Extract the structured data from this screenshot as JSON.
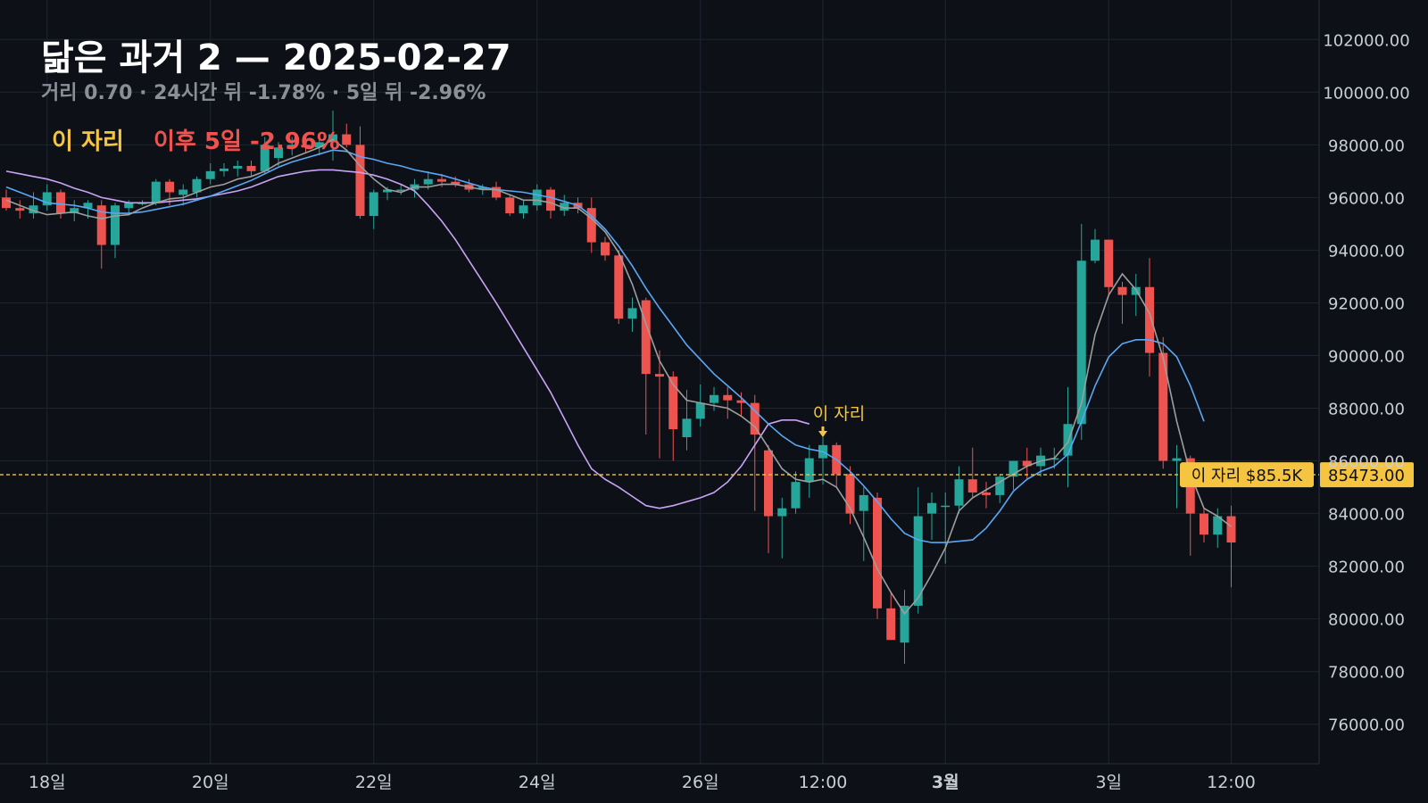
{
  "header": {
    "title": "닮은 과거 2 — 2025-02-27",
    "subtitle": "거리 0.70 · 24시간 뒤 -1.78% · 5일 뒤 -2.96%",
    "marker_label": "이 자리",
    "result_label": "이후 5일 -2.96%"
  },
  "colors": {
    "background": "#0d1117",
    "grid": "#1f2530",
    "up": "#26a69a",
    "down": "#ef5350",
    "ma_short": "#9e9e9e",
    "ma_mid": "#5aa7f5",
    "ma_long": "#c9a3f5",
    "marker": "#f5c542"
  },
  "chart_data": {
    "type": "candlestick",
    "ylim": [
      74500,
      103500
    ],
    "y_ticks": [
      76000,
      78000,
      80000,
      82000,
      84000,
      86000,
      88000,
      90000,
      92000,
      94000,
      96000,
      98000,
      100000,
      102000
    ],
    "y_tick_labels": [
      "76000.00",
      "78000.00",
      "80000.00",
      "82000.00",
      "84000.00",
      "86000.00",
      "88000.00",
      "90000.00",
      "92000.00",
      "94000.00",
      "96000.00",
      "98000.00",
      "100000.00",
      "102000.00"
    ],
    "x_ticks": [
      {
        "i": 3,
        "label": "18일",
        "bold": false
      },
      {
        "i": 15,
        "label": "20일",
        "bold": false
      },
      {
        "i": 27,
        "label": "22일",
        "bold": false
      },
      {
        "i": 39,
        "label": "24일",
        "bold": false
      },
      {
        "i": 51,
        "label": "26일",
        "bold": false
      },
      {
        "i": 60,
        "label": "12:00",
        "bold": false
      },
      {
        "i": 69,
        "label": "3월",
        "bold": true
      },
      {
        "i": 81,
        "label": "3일",
        "bold": false
      },
      {
        "i": 90,
        "label": "12:00",
        "bold": false
      }
    ],
    "candles": [
      [
        96000,
        96300,
        95500,
        95600
      ],
      [
        95600,
        95900,
        95200,
        95500
      ],
      [
        95400,
        96200,
        95200,
        95700
      ],
      [
        95700,
        96500,
        95500,
        96200
      ],
      [
        96200,
        96300,
        95200,
        95400
      ],
      [
        95400,
        95900,
        95100,
        95600
      ],
      [
        95600,
        95900,
        95200,
        95800
      ],
      [
        95700,
        95900,
        93300,
        94200
      ],
      [
        94200,
        95800,
        93700,
        95700
      ],
      [
        95600,
        95900,
        95400,
        95800
      ],
      [
        95800,
        95900,
        95700,
        95800
      ],
      [
        95800,
        96700,
        95700,
        96600
      ],
      [
        96600,
        96700,
        95700,
        96200
      ],
      [
        96100,
        96500,
        95700,
        96300
      ],
      [
        96200,
        96800,
        96000,
        96700
      ],
      [
        96700,
        97300,
        96500,
        97000
      ],
      [
        97000,
        97300,
        96800,
        97100
      ],
      [
        97100,
        97400,
        96800,
        97200
      ],
      [
        97200,
        97400,
        96800,
        97000
      ],
      [
        97000,
        98300,
        96900,
        98000
      ],
      [
        97500,
        98100,
        97200,
        97900
      ],
      [
        97900,
        98300,
        97600,
        98000
      ],
      [
        98000,
        98400,
        97700,
        97900
      ],
      [
        97900,
        98300,
        97600,
        98100
      ],
      [
        98100,
        99300,
        97400,
        98400
      ],
      [
        98400,
        98800,
        97900,
        98000
      ],
      [
        98000,
        98700,
        95200,
        95300
      ],
      [
        95300,
        96300,
        94800,
        96200
      ],
      [
        96200,
        96400,
        95900,
        96300
      ],
      [
        96300,
        96500,
        96100,
        96300
      ],
      [
        96300,
        96700,
        96000,
        96500
      ],
      [
        96500,
        97000,
        96300,
        96700
      ],
      [
        96700,
        96900,
        96400,
        96600
      ],
      [
        96600,
        96800,
        96400,
        96500
      ],
      [
        96500,
        96700,
        96200,
        96300
      ],
      [
        96300,
        96500,
        96100,
        96400
      ],
      [
        96400,
        96600,
        95900,
        96000
      ],
      [
        96000,
        96100,
        95300,
        95400
      ],
      [
        95400,
        95900,
        95200,
        95700
      ],
      [
        95700,
        96500,
        95500,
        96300
      ],
      [
        96300,
        96400,
        95200,
        95500
      ],
      [
        95500,
        96100,
        95300,
        95800
      ],
      [
        95800,
        96000,
        95400,
        95600
      ],
      [
        95600,
        96000,
        93900,
        94300
      ],
      [
        94300,
        94500,
        93600,
        93800
      ],
      [
        93800,
        94000,
        91200,
        91400
      ],
      [
        91400,
        92200,
        90900,
        91800
      ],
      [
        92100,
        92200,
        87000,
        89300
      ],
      [
        89300,
        90200,
        86100,
        89200
      ],
      [
        89200,
        89400,
        86000,
        87200
      ],
      [
        86900,
        88700,
        86400,
        87600
      ],
      [
        87600,
        88900,
        87300,
        88200
      ],
      [
        88200,
        88800,
        87900,
        88500
      ],
      [
        88500,
        88800,
        87600,
        88300
      ],
      [
        88300,
        88600,
        87700,
        88200
      ],
      [
        88200,
        88500,
        84100,
        87000
      ],
      [
        86400,
        86600,
        82500,
        83900
      ],
      [
        83900,
        84600,
        82300,
        84200
      ],
      [
        84200,
        85600,
        84000,
        85200
      ],
      [
        85200,
        86600,
        84600,
        86100
      ],
      [
        86100,
        86900,
        85100,
        86600
      ],
      [
        86600,
        86700,
        85000,
        85500
      ],
      [
        85500,
        85800,
        83600,
        84000
      ],
      [
        84100,
        85000,
        82200,
        84700
      ],
      [
        84600,
        84800,
        80000,
        80400
      ],
      [
        80400,
        81000,
        79200,
        79200
      ],
      [
        79100,
        81100,
        78300,
        80500
      ],
      [
        80500,
        85000,
        80200,
        83900
      ],
      [
        84000,
        84800,
        83000,
        84400
      ],
      [
        84300,
        84800,
        82100,
        84300
      ],
      [
        84300,
        85800,
        84000,
        85300
      ],
      [
        85300,
        86500,
        84600,
        84800
      ],
      [
        84800,
        85200,
        84200,
        84700
      ],
      [
        84700,
        85500,
        84400,
        85400
      ],
      [
        85400,
        86000,
        84900,
        86000
      ],
      [
        86000,
        86500,
        85300,
        85800
      ],
      [
        85800,
        86500,
        85400,
        86200
      ],
      [
        86100,
        86500,
        85700,
        86100
      ],
      [
        86200,
        88800,
        85000,
        87400
      ],
      [
        87400,
        95000,
        86800,
        93600
      ],
      [
        93600,
        94800,
        93500,
        94400
      ],
      [
        94400,
        94400,
        92300,
        92600
      ],
      [
        92600,
        92800,
        91200,
        92300
      ],
      [
        92300,
        93100,
        91500,
        92600
      ],
      [
        92600,
        93700,
        89200,
        90100
      ],
      [
        90100,
        90700,
        85700,
        86000
      ],
      [
        86000,
        86600,
        84200,
        86100
      ],
      [
        86100,
        86200,
        82400,
        84000
      ],
      [
        84000,
        84200,
        82900,
        83200
      ],
      [
        83200,
        84200,
        82700,
        83900
      ],
      [
        83900,
        84300,
        81200,
        82900
      ]
    ],
    "ma_short": [
      95900,
      95700,
      95500,
      95350,
      95400,
      95450,
      95300,
      95200,
      95300,
      95350,
      95600,
      95800,
      95950,
      96000,
      96200,
      96400,
      96500,
      96700,
      96800,
      97000,
      97300,
      97500,
      97700,
      97900,
      98200,
      97800,
      97200,
      96700,
      96300,
      96200,
      96400,
      96400,
      96500,
      96500,
      96400,
      96300,
      96300,
      96100,
      95900,
      95900,
      95800,
      95600,
      95600,
      95200,
      94700,
      93900,
      92700,
      91200,
      89800,
      88900,
      88300,
      88200,
      88100,
      88000,
      87700,
      87300,
      86500,
      85700,
      85300,
      85200,
      85300,
      85000,
      84200,
      83100,
      81900,
      81000,
      80200,
      80800,
      81700,
      82700,
      84100,
      84600,
      84900,
      85200,
      85500,
      85800,
      86000,
      86100,
      86700,
      88200,
      90800,
      92300,
      93100,
      92500,
      91600,
      89900,
      87500,
      85500,
      84200,
      83900,
      83500
    ],
    "ma_mid": [
      96400,
      96200,
      96000,
      95800,
      95750,
      95700,
      95600,
      95450,
      95400,
      95400,
      95450,
      95550,
      95650,
      95750,
      95900,
      96050,
      96250,
      96450,
      96650,
      96900,
      97150,
      97350,
      97500,
      97650,
      97800,
      97750,
      97550,
      97450,
      97300,
      97200,
      97050,
      96950,
      96850,
      96700,
      96550,
      96400,
      96300,
      96250,
      96200,
      96100,
      96000,
      95850,
      95700,
      95300,
      94800,
      94150,
      93400,
      92550,
      91800,
      91100,
      90400,
      89850,
      89300,
      88850,
      88400,
      87900,
      87400,
      86950,
      86600,
      86450,
      86350,
      86050,
      85600,
      85050,
      84450,
      83800,
      83250,
      83000,
      82900,
      82900,
      82950,
      83000,
      83450,
      84100,
      84850,
      85300,
      85600,
      85800,
      86250,
      87500,
      88850,
      89950,
      90450,
      90600,
      90600,
      90450,
      89950,
      88850,
      87500
    ],
    "ma_long": [
      97000,
      96900,
      96800,
      96700,
      96550,
      96350,
      96200,
      96000,
      95900,
      95800,
      95800,
      95800,
      95850,
      95900,
      95950,
      96050,
      96150,
      96250,
      96400,
      96600,
      96800,
      96900,
      97000,
      97050,
      97050,
      97000,
      96950,
      96850,
      96700,
      96500,
      96250,
      95700,
      95100,
      94400,
      93600,
      92800,
      92000,
      91150,
      90300,
      89450,
      88600,
      87600,
      86600,
      85700,
      85300,
      85000,
      84650,
      84300,
      84200,
      84300,
      84450,
      84600,
      84800,
      85200,
      85800,
      86600,
      87400,
      87550,
      87550,
      87400
    ]
  },
  "price_tag": {
    "label": "이 자리 $85.5K",
    "value": 85473,
    "value_text": "85473.00"
  },
  "annotation": {
    "i": 60,
    "label": "이 자리"
  }
}
